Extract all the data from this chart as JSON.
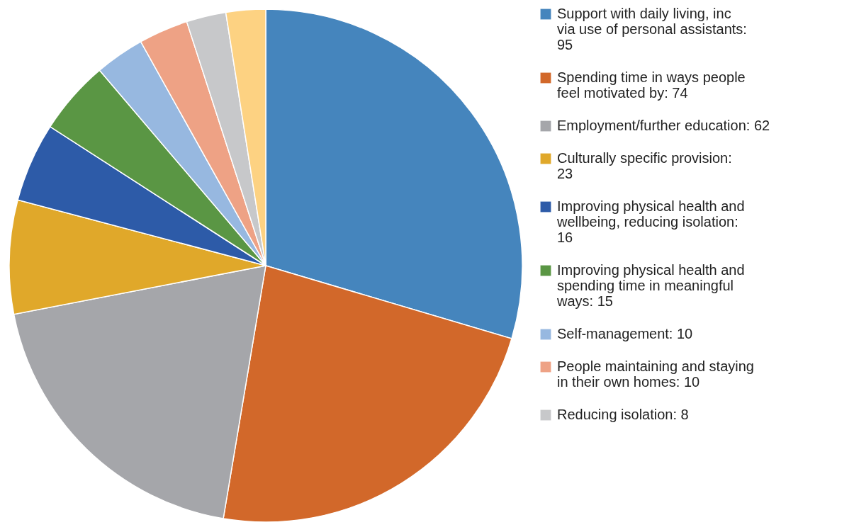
{
  "chart_data": {
    "type": "pie",
    "categories": [
      "Support with daily living, inc via use of personal assistants: 95",
      "Spending time in ways people feel motivated by: 74",
      "Employment/further education: 62",
      "Culturally specific provision: 23",
      "Improving physical health and wellbeing, reducing isolation: 16",
      "Improving physical health and spending time in meaningful ways: 15",
      "Self-management: 10",
      "People maintaining and staying in their own homes: 10",
      "Reducing isolation: 8",
      null
    ],
    "values": [
      95,
      74,
      62,
      23,
      16,
      15,
      10,
      10,
      8,
      8
    ],
    "colors": [
      "#4585bd",
      "#d2682a",
      "#a5a6aa",
      "#e0a82a",
      "#2d5ba8",
      "#5a9644",
      "#97b8e0",
      "#eea285",
      "#c7c8ca",
      "#fdd282"
    ],
    "legend": "right"
  }
}
